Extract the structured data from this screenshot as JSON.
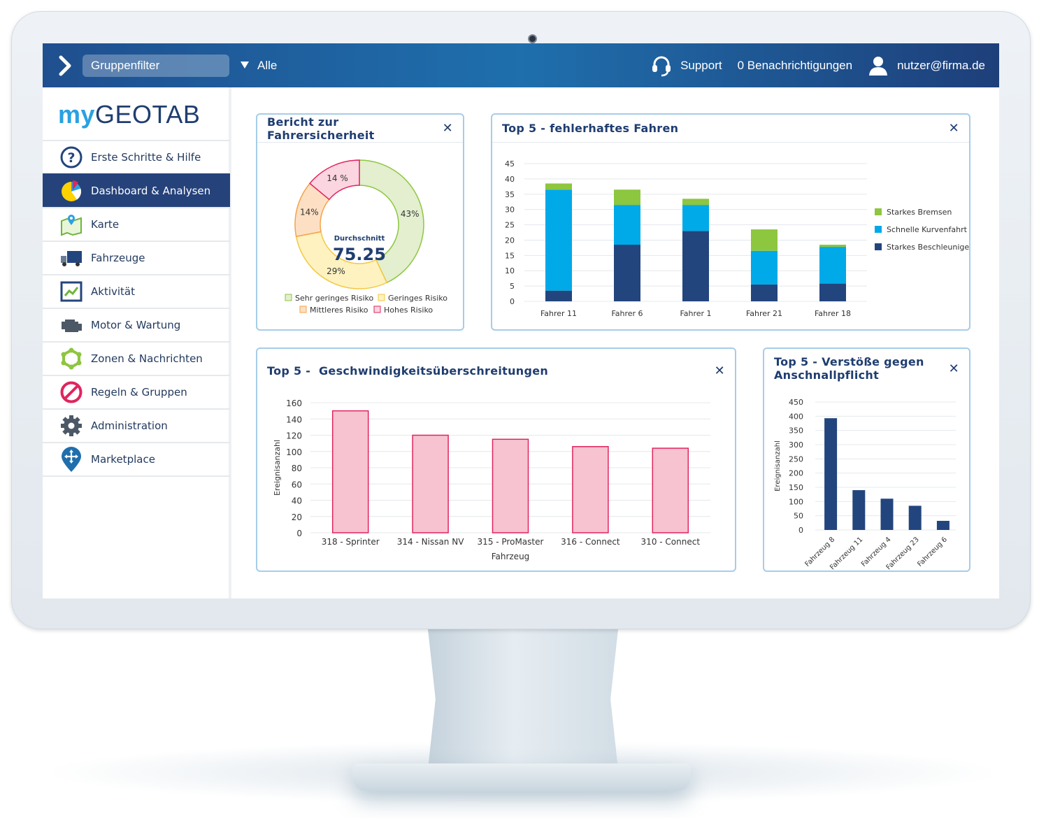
{
  "topbar": {
    "group_filter_label": "Gruppenfilter",
    "filter_value": "Alle",
    "support_label": "Support",
    "notifications_label": "0 Benachrichtigungen",
    "user_email": "nutzer@firma.de"
  },
  "logo": {
    "my": "my",
    "geo": "GEOTAB"
  },
  "sidebar": {
    "items": [
      {
        "label": "Erste Schritte & Hilfe",
        "icon": "help-icon"
      },
      {
        "label": "Dashboard & Analysen",
        "icon": "dashboard-pie-icon",
        "active": true
      },
      {
        "label": "Karte",
        "icon": "map-icon"
      },
      {
        "label": "Fahrzeuge",
        "icon": "truck-icon"
      },
      {
        "label": "Aktivität",
        "icon": "activity-icon"
      },
      {
        "label": "Motor & Wartung",
        "icon": "engine-icon"
      },
      {
        "label": "Zonen & Nachrichten",
        "icon": "zones-icon"
      },
      {
        "label": "Regeln & Gruppen",
        "icon": "rules-icon"
      },
      {
        "label": "Administration",
        "icon": "gear-icon"
      },
      {
        "label": "Marketplace",
        "icon": "marketplace-icon"
      }
    ]
  },
  "widgets": {
    "safety": {
      "title": "Bericht zur Fahrersicherheit",
      "center_label": "Durchschnitt",
      "center_value": "75.25"
    },
    "faulty": {
      "title": "Top 5 - fehlerhaftes Fahren"
    },
    "speeding": {
      "title": "Top 5 -  Geschwindigkeitsüberschreitungen"
    },
    "seatbelt": {
      "title_line1": "Top 5 - Verstöße gegen",
      "title_line2": "Anschnallpflicht"
    }
  },
  "colors": {
    "topbar": "#1f5f9f",
    "active_nav": "#25427a",
    "widget_border": "#a6cde8",
    "green": "#8dc63f",
    "cyan": "#00a9e8",
    "navy": "#23457e",
    "pink": "#f7c3d1",
    "pink_border": "#e0245e"
  },
  "chart_data": [
    {
      "type": "pie",
      "title": "Bericht zur Fahrersicherheit",
      "slices": [
        {
          "name": "Sehr geringes Risiko",
          "value": 43,
          "label": "43%",
          "color": "#e3efcf",
          "stroke": "#8dc63f"
        },
        {
          "name": "Geringes Risiko",
          "value": 29,
          "label": "29%",
          "color": "#fdf2c0",
          "stroke": "#f3c843"
        },
        {
          "name": "Mittleres Risiko",
          "value": 14,
          "label": "14%",
          "color": "#fde0c4",
          "stroke": "#f5a24a"
        },
        {
          "name": "Hohes Risiko",
          "value": 14,
          "label": "14 %",
          "color": "#fbd5e0",
          "stroke": "#e0245e"
        }
      ],
      "legend": [
        "Sehr geringes Risiko",
        "Geringes Risiko",
        "Mittleres Risiko",
        "Hohes Risiko"
      ]
    },
    {
      "type": "bar",
      "stacked": true,
      "title": "Top 5 - fehlerhaftes Fahren",
      "categories": [
        "Fahrer 11",
        "Fahrer 6",
        "Fahrer 1",
        "Fahrer 21",
        "Fahrer 18"
      ],
      "series": [
        {
          "name": "Starkes Beschleunigen",
          "color": "#23457e",
          "values": [
            3.5,
            18.5,
            23,
            5.5,
            5.8
          ]
        },
        {
          "name": "Schnelle Kurvenfahrt",
          "color": "#00a9e8",
          "values": [
            33,
            13,
            8.5,
            11,
            12
          ]
        },
        {
          "name": "Starkes Bremsen",
          "color": "#8dc63f",
          "values": [
            2,
            5,
            2,
            7,
            0.7
          ]
        }
      ],
      "legend_order": [
        "Starkes Bremsen",
        "Schnelle Kurvenfahrt",
        "Starkes Beschleunigen"
      ],
      "ylim": [
        0,
        45
      ],
      "yticks": [
        0,
        5,
        10,
        15,
        20,
        25,
        30,
        35,
        40,
        45
      ],
      "legend_position": "right"
    },
    {
      "type": "bar",
      "title": "Top 5 -  Geschwindigkeitsüberschreitungen",
      "categories": [
        "318 - Sprinter",
        "314 - Nissan NV",
        "315 - ProMaster",
        "316 - Connect",
        "310 - Connect"
      ],
      "values": [
        150,
        120,
        115,
        106,
        104
      ],
      "xlabel": "Fahrzeug",
      "ylabel": "Ereignisanzahl",
      "ylim": [
        0,
        160
      ],
      "yticks": [
        0,
        20,
        40,
        60,
        80,
        100,
        120,
        140,
        160
      ]
    },
    {
      "type": "bar",
      "title": "Top 5 - Verstöße gegen Anschnallpflicht",
      "categories": [
        "Fahrzeug 8",
        "Fahrzeug 11",
        "Fahrzeug 4",
        "Fahrzeug 23",
        "Fahrzeug 6"
      ],
      "values": [
        393,
        140,
        110,
        85,
        32
      ],
      "ylabel": "Ereignisanzahl",
      "ylim": [
        0,
        450
      ],
      "yticks": [
        0,
        50,
        100,
        150,
        200,
        250,
        300,
        350,
        400,
        450
      ]
    }
  ]
}
